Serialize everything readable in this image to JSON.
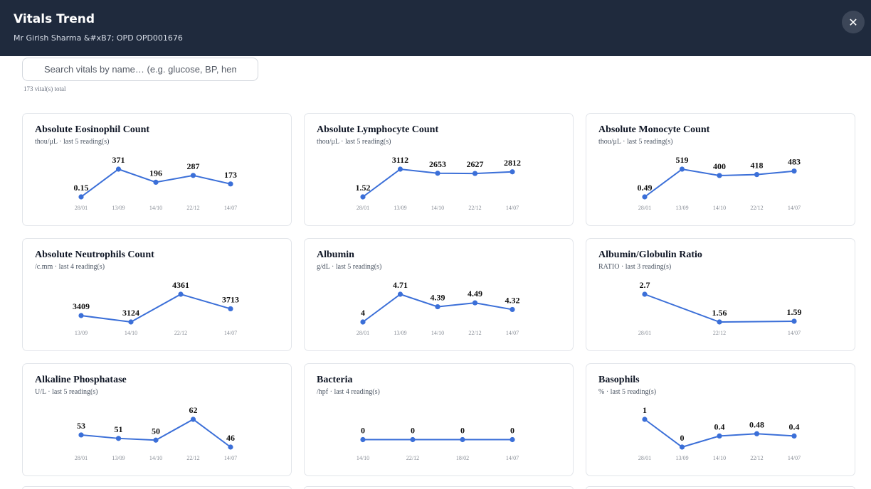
{
  "header": {
    "title": "Vitals Trend",
    "subtitle": "Mr Girish Sharma &#xB7; OPD OPD001676",
    "close_glyph": "✕"
  },
  "search": {
    "placeholder": "Search vitals by name… (e.g. glucose, BP, hemoglobin)",
    "value": ""
  },
  "total_label": "173 vital(s) total",
  "theme": {
    "accent": "#3b6fd8",
    "header_bg": "#1f2a3d"
  },
  "cards": [
    {
      "title": "Absolute Eosinophil Count",
      "subtitle": "thou/μL · last 5 reading(s)",
      "chart_data": {
        "type": "line",
        "x": [
          "28/01",
          "13/09",
          "14/10",
          "22/12",
          "14/07"
        ],
        "values": [
          0.15,
          371,
          196,
          287,
          173
        ],
        "labels": [
          "0.15",
          "371",
          "196",
          "287",
          "173"
        ]
      }
    },
    {
      "title": "Absolute Lymphocyte Count",
      "subtitle": "thou/μL · last 5 reading(s)",
      "chart_data": {
        "type": "line",
        "x": [
          "28/01",
          "13/09",
          "14/10",
          "22/12",
          "14/07"
        ],
        "values": [
          1.52,
          3112,
          2653,
          2627,
          2812
        ],
        "labels": [
          "1.52",
          "3112",
          "2653",
          "2627",
          "2812"
        ]
      }
    },
    {
      "title": "Absolute Monocyte Count",
      "subtitle": "thou/μL · last 5 reading(s)",
      "chart_data": {
        "type": "line",
        "x": [
          "28/01",
          "13/09",
          "14/10",
          "22/12",
          "14/07"
        ],
        "values": [
          0.49,
          519,
          400,
          418,
          483
        ],
        "labels": [
          "0.49",
          "519",
          "400",
          "418",
          "483"
        ]
      }
    },
    {
      "title": "Absolute Neutrophils Count",
      "subtitle": "/c.mm · last 4 reading(s)",
      "chart_data": {
        "type": "line",
        "x": [
          "13/09",
          "14/10",
          "22/12",
          "14/07"
        ],
        "values": [
          3409,
          3124,
          4361,
          3713
        ],
        "labels": [
          "3409",
          "3124",
          "4361",
          "3713"
        ]
      }
    },
    {
      "title": "Albumin",
      "subtitle": "g/dL · last 5 reading(s)",
      "chart_data": {
        "type": "line",
        "x": [
          "28/01",
          "13/09",
          "14/10",
          "22/12",
          "14/07"
        ],
        "values": [
          4,
          4.71,
          4.39,
          4.49,
          4.32
        ],
        "labels": [
          "4",
          "4.71",
          "4.39",
          "4.49",
          "4.32"
        ]
      }
    },
    {
      "title": "Albumin/Globulin Ratio",
      "subtitle": "RATIO · last 3 reading(s)",
      "chart_data": {
        "type": "line",
        "x": [
          "28/01",
          "22/12",
          "14/07"
        ],
        "values": [
          2.7,
          1.56,
          1.59
        ],
        "labels": [
          "2.7",
          "1.56",
          "1.59"
        ]
      }
    },
    {
      "title": "Alkaline Phosphatase",
      "subtitle": "U/L · last 5 reading(s)",
      "chart_data": {
        "type": "line",
        "x": [
          "28/01",
          "13/09",
          "14/10",
          "22/12",
          "14/07"
        ],
        "values": [
          53,
          51,
          50,
          62,
          46
        ],
        "labels": [
          "53",
          "51",
          "50",
          "62",
          "46"
        ]
      }
    },
    {
      "title": "Bacteria",
      "subtitle": "/hpf · last 4 reading(s)",
      "chart_data": {
        "type": "line",
        "x": [
          "14/10",
          "22/12",
          "18/02",
          "14/07"
        ],
        "values": [
          0,
          0,
          0,
          0
        ],
        "labels": [
          "0",
          "0",
          "0",
          "0"
        ]
      }
    },
    {
      "title": "Basophils",
      "subtitle": "% · last 5 reading(s)",
      "chart_data": {
        "type": "line",
        "x": [
          "28/01",
          "13/09",
          "14/10",
          "22/12",
          "14/07"
        ],
        "values": [
          1,
          0,
          0.4,
          0.48,
          0.4
        ],
        "labels": [
          "1",
          "0",
          "0.4",
          "0.48",
          "0.4"
        ]
      }
    }
  ]
}
